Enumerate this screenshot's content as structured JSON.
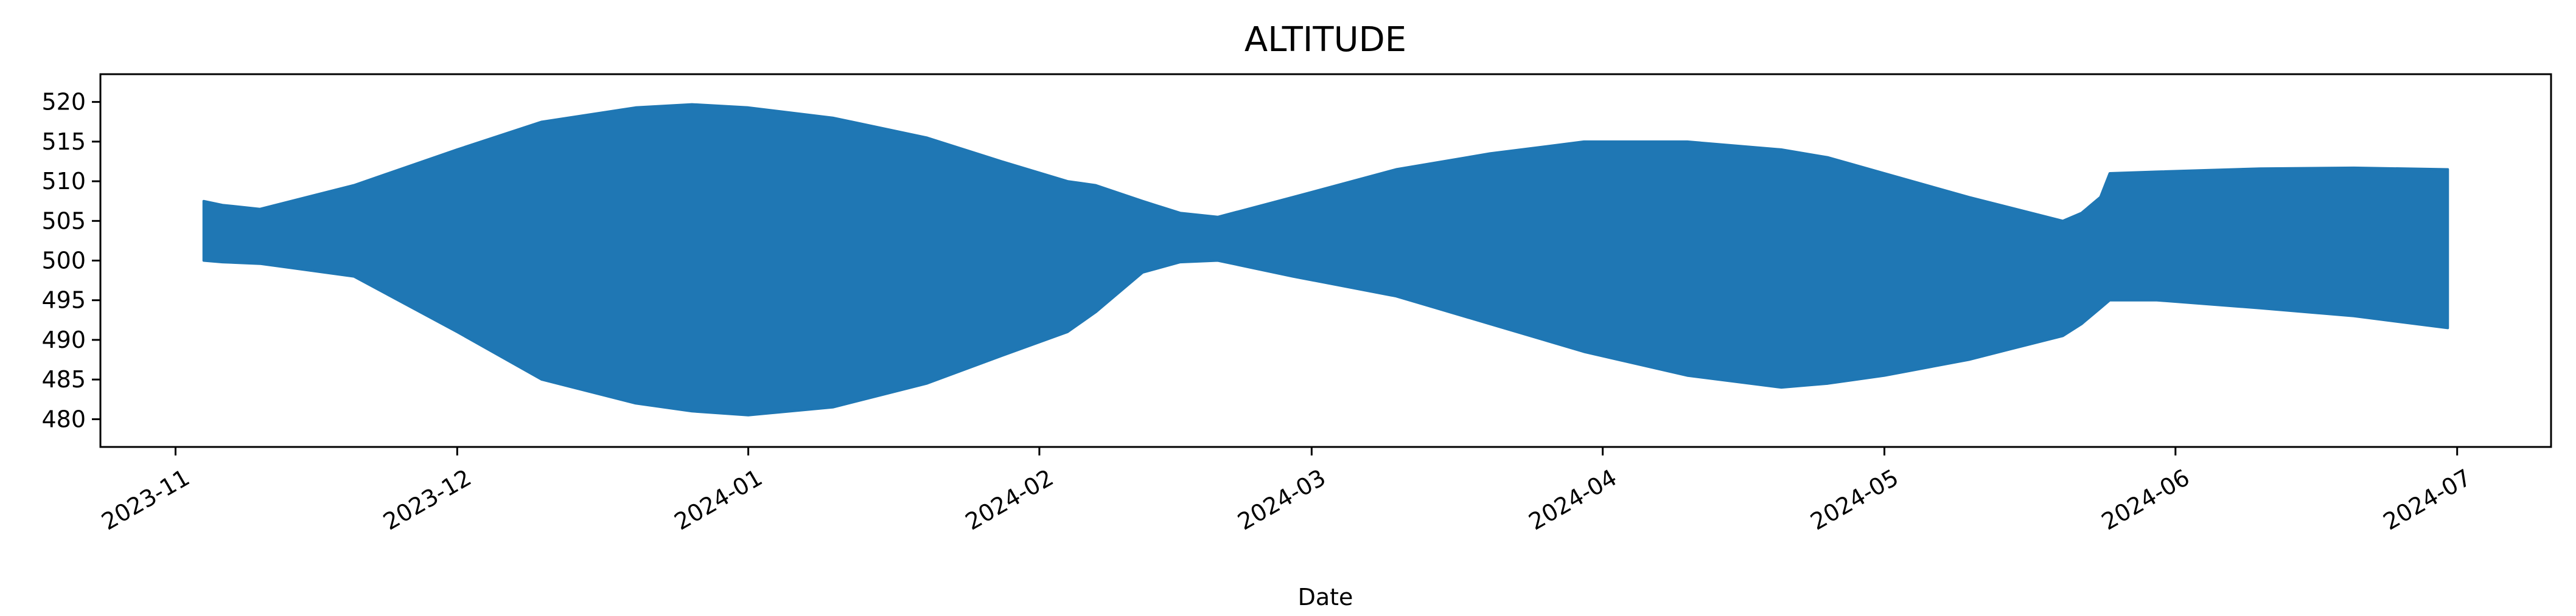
{
  "chart_data": {
    "type": "area",
    "title": "ALTITUDE",
    "xlabel": "Date",
    "ylabel": "",
    "x_ticks": [
      "2023-11",
      "2023-12",
      "2024-01",
      "2024-02",
      "2024-03",
      "2024-04",
      "2024-05",
      "2024-06",
      "2024-07"
    ],
    "y_ticks": [
      480,
      485,
      490,
      495,
      500,
      505,
      510,
      515,
      520
    ],
    "xlim": [
      "2023-10-24",
      "2024-07-11"
    ],
    "ylim": [
      476.5,
      523.5
    ],
    "grid": false,
    "legend": "none",
    "series_color": "#1f77b4",
    "envelope": {
      "x": [
        "2023-11-04",
        "2023-11-06",
        "2023-11-10",
        "2023-11-20",
        "2023-12-01",
        "2023-12-10",
        "2023-12-20",
        "2023-12-26",
        "2024-01-01",
        "2024-01-10",
        "2024-01-20",
        "2024-01-28",
        "2024-02-04",
        "2024-02-07",
        "2024-02-12",
        "2024-02-16",
        "2024-02-20",
        "2024-02-28",
        "2024-03-10",
        "2024-03-20",
        "2024-03-30",
        "2024-04-10",
        "2024-04-20",
        "2024-04-25",
        "2024-05-01",
        "2024-05-10",
        "2024-05-20",
        "2024-05-22",
        "2024-05-24",
        "2024-05-25",
        "2024-05-30",
        "2024-06-10",
        "2024-06-20",
        "2024-06-30"
      ],
      "upper": [
        507.5,
        507.0,
        506.5,
        509.5,
        514.0,
        517.5,
        519.3,
        519.7,
        519.3,
        518.0,
        515.5,
        512.5,
        510.0,
        509.5,
        507.5,
        506.0,
        505.5,
        508.0,
        511.5,
        513.5,
        515.0,
        515.0,
        514.0,
        513.0,
        511.0,
        508.0,
        505.0,
        506.0,
        508.0,
        511.0,
        511.2,
        511.6,
        511.7,
        511.5
      ],
      "lower": [
        500.0,
        499.8,
        499.6,
        498.0,
        491.0,
        485.0,
        482.0,
        481.0,
        480.5,
        481.5,
        484.5,
        488.0,
        491.0,
        493.5,
        498.5,
        499.8,
        500.0,
        498.0,
        495.5,
        492.0,
        488.5,
        485.5,
        484.0,
        484.5,
        485.5,
        487.5,
        490.5,
        492.0,
        494.0,
        495.0,
        495.0,
        494.0,
        493.0,
        491.5
      ]
    }
  }
}
